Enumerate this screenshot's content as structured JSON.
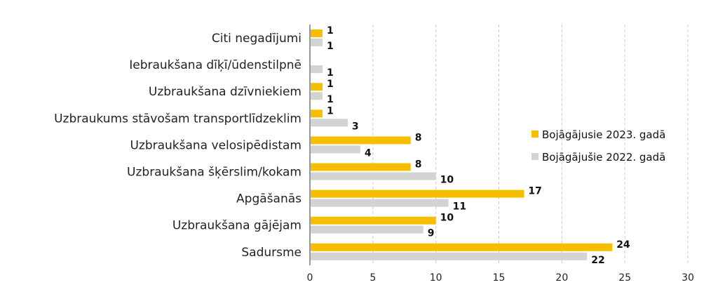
{
  "chart_data": {
    "type": "bar",
    "orientation": "horizontal",
    "categories": [
      "Citi negadījumi",
      "Iebraukšana dīķī/ūdenstilpnē",
      "Uzbraukšana dzīvniekiem",
      "Uzbraukums stāvošam transportlīdzeklim",
      "Uzbraukšana velosipēdistam",
      "Uzbraukšana šķērslim/kokam",
      "Apgāšanās",
      "Uzbraukšana gājējam",
      "Sadursme"
    ],
    "series": [
      {
        "name": "Bojāgājusie 2023. gadā",
        "color": "#f5bf00",
        "values": [
          1,
          null,
          1,
          1,
          8,
          8,
          17,
          10,
          24
        ]
      },
      {
        "name": "Bojāgājušie 2022. gadā",
        "color": "#d3d3d3",
        "values": [
          1,
          1,
          1,
          3,
          4,
          10,
          11,
          9,
          22
        ]
      }
    ],
    "xlim": [
      0,
      30
    ],
    "xticks": [
      "0",
      "5",
      "10",
      "15",
      "20",
      "25",
      "30"
    ],
    "grid": "vertical dashed",
    "legend": "right"
  }
}
